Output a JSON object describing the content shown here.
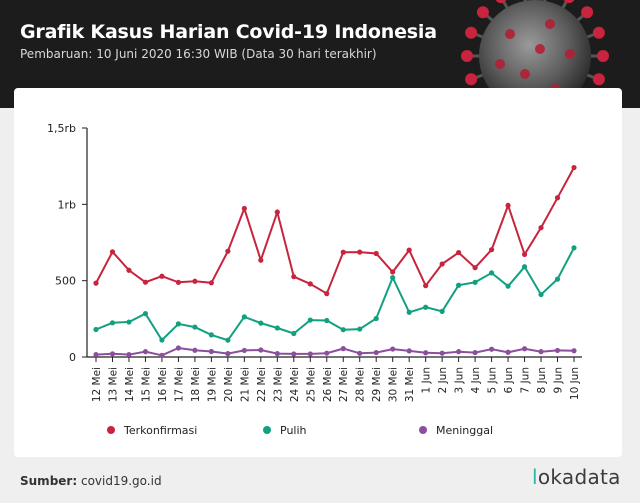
{
  "header": {
    "title": "Grafik Kasus Harian Covid-19 Indonesia",
    "subtitle": "Pembaruan: 10 Juni 2020 16:30 WIB (Data 30 hari terakhir)"
  },
  "footer": {
    "source_label": "Sumber:",
    "source_value": "covid19.go.id",
    "logo_prefix": "l",
    "logo_text": "okadata"
  },
  "chart_data": {
    "type": "line",
    "categories": [
      "12 Mei",
      "13 Mei",
      "14 Mei",
      "15 Mei",
      "16 Mei",
      "17 Mei",
      "18 Mei",
      "19 Mei",
      "20 Mei",
      "21 Mei",
      "22 Mei",
      "23 Mei",
      "24 Mei",
      "25 Mei",
      "26 Mei",
      "27 Mei",
      "28 Mei",
      "29 Mei",
      "30 Mei",
      "31 Mei",
      "1 Jun",
      "2 Jun",
      "3 Jun",
      "4 Jun",
      "5 Jun",
      "6 Jun",
      "7 Jun",
      "8 Jun",
      "9 Jun",
      "10 Jun"
    ],
    "ylim": [
      0,
      1500
    ],
    "yticks": [
      {
        "value": 0,
        "label": "0"
      },
      {
        "value": 500,
        "label": "500"
      },
      {
        "value": 1000,
        "label": "1rb"
      },
      {
        "value": 1500,
        "label": "1,5rb"
      }
    ],
    "series": [
      {
        "name": "Terkonfirmasi",
        "color": "#c8243e",
        "values": [
          484,
          689,
          568,
          490,
          529,
          489,
          496,
          486,
          693,
          973,
          634,
          949,
          526,
          479,
          415,
          686,
          687,
          678,
          557,
          700,
          467,
          609,
          684,
          585,
          703,
          993,
          672,
          847,
          1043,
          1241
        ]
      },
      {
        "name": "Pulih",
        "color": "#13a080",
        "values": [
          180,
          224,
          229,
          284,
          111,
          217,
          196,
          145,
          110,
          263,
          222,
          190,
          154,
          242,
          239,
          179,
          183,
          252,
          520,
          293,
          326,
          299,
          470,
          489,
          551,
          464,
          591,
          409,
          510,
          715
        ]
      },
      {
        "name": "Meninggal",
        "color": "#8b4f9e",
        "values": [
          16,
          21,
          16,
          35,
          11,
          59,
          44,
          36,
          22,
          43,
          46,
          22,
          20,
          20,
          25,
          55,
          24,
          29,
          52,
          40,
          28,
          25,
          35,
          29,
          51,
          31,
          54,
          35,
          43,
          41
        ]
      }
    ],
    "legend_position": "bottom",
    "grid": false
  }
}
